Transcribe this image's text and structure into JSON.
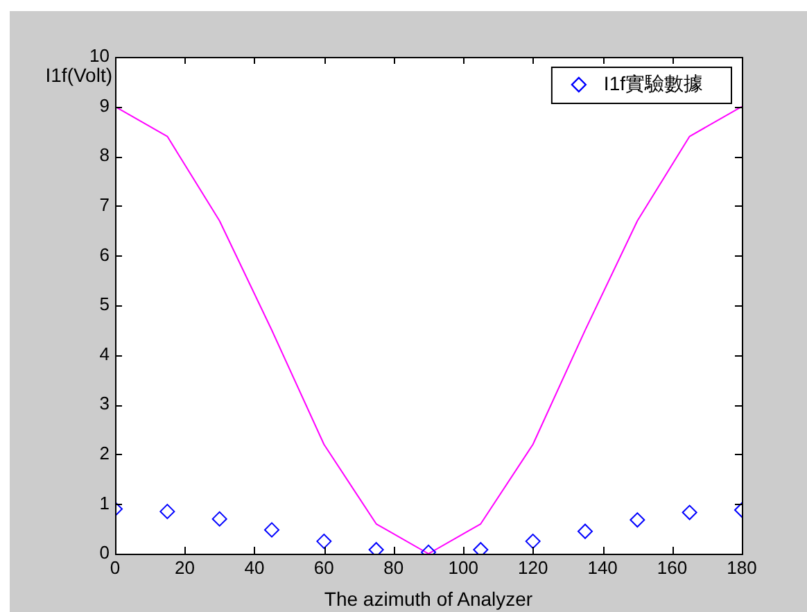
{
  "chart_data": {
    "type": "scatter",
    "xlabel": "The azimuth of Analyzer",
    "ylabel": "I1f(Volt)",
    "xlim": [
      0,
      180
    ],
    "xticks": [
      0,
      20,
      40,
      60,
      80,
      100,
      120,
      140,
      160,
      180
    ],
    "ylim": [
      0,
      10
    ],
    "yticks": [
      0,
      1,
      2,
      3,
      4,
      5,
      6,
      7,
      8,
      9,
      10
    ],
    "grid": false,
    "legend": "top right",
    "series": [
      {
        "type": "line",
        "color": "#ff00ff",
        "marker": "none",
        "x": [
          0,
          15,
          30,
          45,
          60,
          75,
          90,
          105,
          120,
          135,
          150,
          165,
          180
        ],
        "values": [
          9,
          8.4,
          6.7,
          4.5,
          2.2,
          0.6,
          0,
          0.6,
          2.2,
          4.5,
          6.7,
          8.4,
          9
        ]
      },
      {
        "type": "scatter",
        "name": "I1f實驗數據",
        "color": "#0000ff",
        "marker": "diamond",
        "x": [
          0,
          15,
          30,
          45,
          60,
          75,
          90,
          105,
          120,
          135,
          150,
          165,
          180
        ],
        "values": [
          0.9,
          0.85,
          0.7,
          0.48,
          0.25,
          0.08,
          0.03,
          0.08,
          0.25,
          0.45,
          0.68,
          0.83,
          0.88
        ]
      }
    ]
  }
}
